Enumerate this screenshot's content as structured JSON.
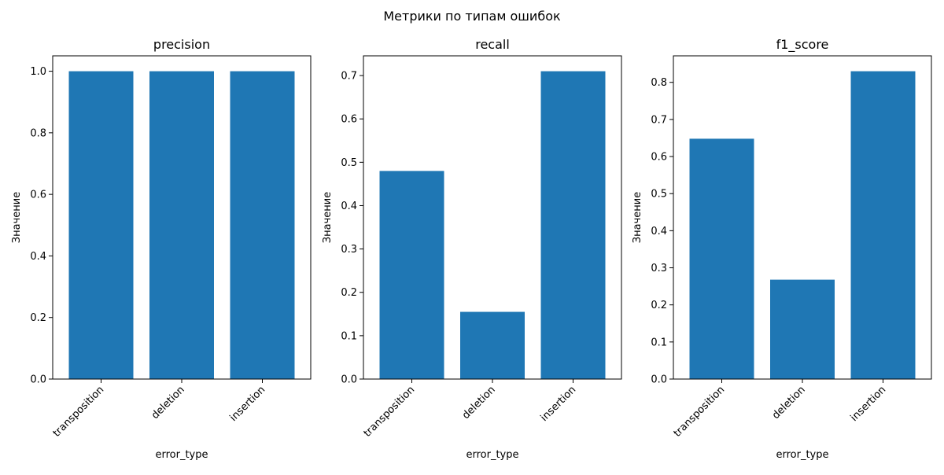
{
  "figure": {
    "suptitle": "Метрики по типам ошибок"
  },
  "colors": {
    "bar": "#1f77b4",
    "axes": "#000000",
    "background": "#ffffff"
  },
  "chart_data": [
    {
      "type": "bar",
      "title": "precision",
      "xlabel": "error_type",
      "ylabel": "Значение",
      "categories": [
        "transposition",
        "deletion",
        "insertion"
      ],
      "values": [
        1.0,
        1.0,
        1.0
      ],
      "ylim": [
        0,
        1.05
      ],
      "yticks": [
        0.0,
        0.2,
        0.4,
        0.6,
        0.8,
        1.0
      ],
      "ytick_labels": [
        "0.0",
        "0.2",
        "0.4",
        "0.6",
        "0.8",
        "1.0"
      ],
      "grid": false
    },
    {
      "type": "bar",
      "title": "recall",
      "xlabel": "error_type",
      "ylabel": "Значение",
      "categories": [
        "transposition",
        "deletion",
        "insertion"
      ],
      "values": [
        0.48,
        0.155,
        0.71
      ],
      "ylim": [
        0,
        0.7455
      ],
      "yticks": [
        0.0,
        0.1,
        0.2,
        0.3,
        0.4,
        0.5,
        0.6,
        0.7
      ],
      "ytick_labels": [
        "0.0",
        "0.1",
        "0.2",
        "0.3",
        "0.4",
        "0.5",
        "0.6",
        "0.7"
      ],
      "grid": false
    },
    {
      "type": "bar",
      "title": "f1_score",
      "xlabel": "error_type",
      "ylabel": "Значение",
      "categories": [
        "transposition",
        "deletion",
        "insertion"
      ],
      "values": [
        0.648,
        0.268,
        0.83
      ],
      "ylim": [
        0,
        0.8715
      ],
      "yticks": [
        0.0,
        0.1,
        0.2,
        0.3,
        0.4,
        0.5,
        0.6,
        0.7,
        0.8
      ],
      "ytick_labels": [
        "0.0",
        "0.1",
        "0.2",
        "0.3",
        "0.4",
        "0.5",
        "0.6",
        "0.7",
        "0.8"
      ],
      "grid": false
    }
  ]
}
